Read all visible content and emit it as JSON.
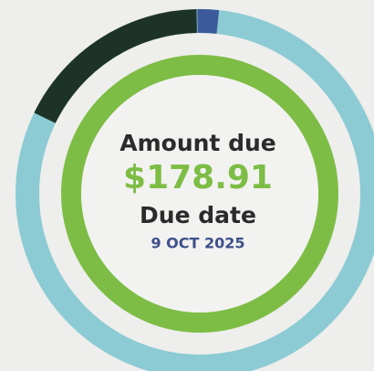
{
  "amount_label": "Amount due",
  "amount": "$178.91",
  "due_label": "Due date",
  "due_date": "9 OCT 2025"
}
